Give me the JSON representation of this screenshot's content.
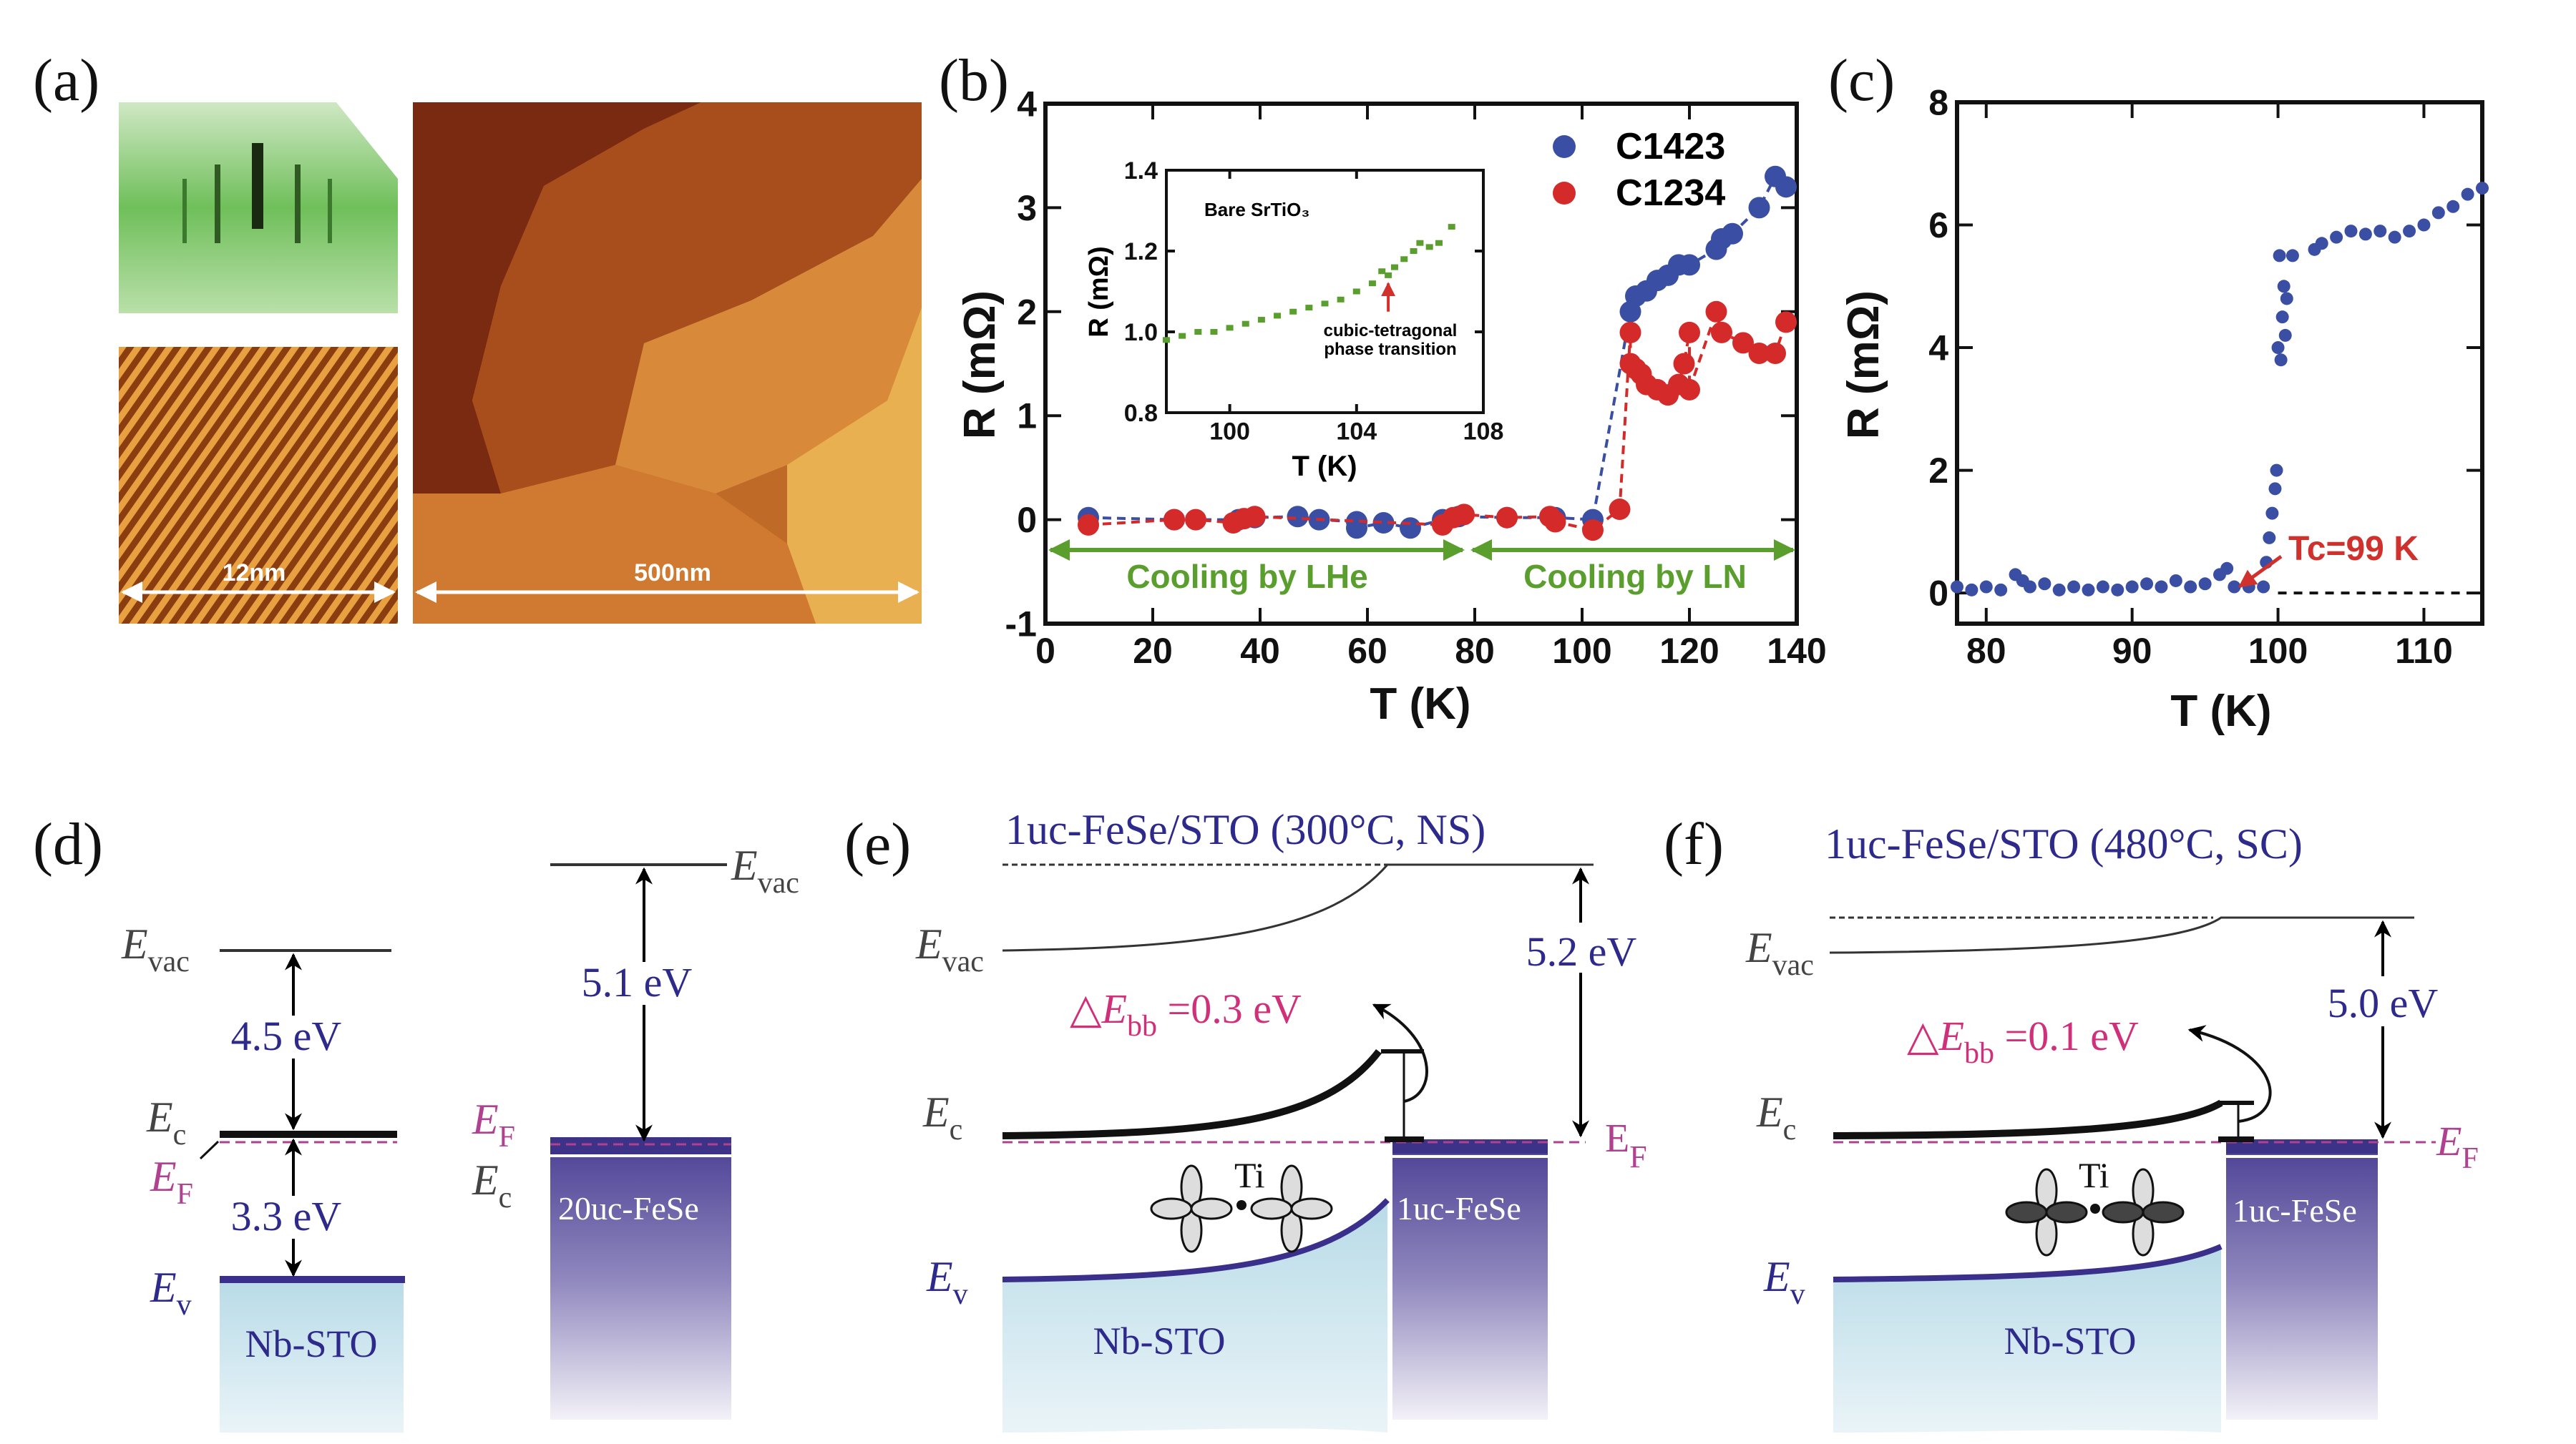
{
  "panels": {
    "a": {
      "label": "(a)",
      "scale_small": "12nm",
      "scale_large": "500nm"
    },
    "b": {
      "label": "(b)"
    },
    "c": {
      "label": "(c)"
    },
    "d": {
      "label": "(d)",
      "left": {
        "evac": {
          "main": "E",
          "sub": "vac"
        },
        "ec": {
          "main": "E",
          "sub": "c"
        },
        "ef": {
          "main": "E",
          "sub": "F"
        },
        "ev": {
          "main": "E",
          "sub": "v"
        },
        "gap_top": "4.5 eV",
        "gap_bottom": "3.3 eV",
        "material": "Nb-STO"
      },
      "right": {
        "evac": {
          "main": "E",
          "sub": "vac"
        },
        "ef": {
          "main": "E",
          "sub": "F"
        },
        "ec": {
          "main": "E",
          "sub": "c"
        },
        "work_function": "5.1 eV",
        "material": "20uc-FeSe"
      }
    },
    "e": {
      "label": "(e)",
      "title": "1uc-FeSe/STO (300°C, NS)",
      "evac": {
        "main": "E",
        "sub": "vac"
      },
      "ec": {
        "main": "E",
        "sub": "c"
      },
      "ev": {
        "main": "E",
        "sub": "v"
      },
      "ef": {
        "main": "E",
        "sub": "F"
      },
      "band_bending": {
        "prefix": "△",
        "main": "E",
        "sub": "bb",
        "value": " =0.3 eV"
      },
      "work_function": "5.2 eV",
      "ti": "Ti",
      "substrate": "Nb-STO",
      "film": "1uc-FeSe"
    },
    "f": {
      "label": "(f)",
      "title": "1uc-FeSe/STO (480°C, SC)",
      "evac": {
        "main": "E",
        "sub": "vac"
      },
      "ec": {
        "main": "E",
        "sub": "c"
      },
      "ev": {
        "main": "E",
        "sub": "v"
      },
      "ef": {
        "main": "E",
        "sub": "F"
      },
      "band_bending": {
        "prefix": "△",
        "main": "E",
        "sub": "bb",
        "value": " =0.1 eV"
      },
      "work_function": "5.0 eV",
      "ti": "Ti",
      "substrate": "Nb-STO",
      "film": "1uc-FeSe"
    }
  },
  "colors": {
    "blue": "#3a4fa3",
    "red": "#d42a2a",
    "green": "#5a9e2e",
    "navy": "#2e2a8c",
    "magenta": "#d0307a",
    "sto": "#bfdde9",
    "fese": "#4a3f94"
  },
  "chart_data": [
    {
      "id": "b",
      "type": "scatter",
      "xlabel": "T (K)",
      "ylabel": "R (mΩ)",
      "xlim": [
        0,
        140
      ],
      "ylim": [
        -1,
        4
      ],
      "xticks": [
        0,
        20,
        40,
        60,
        80,
        100,
        120,
        140
      ],
      "yticks": [
        -1,
        0,
        1,
        2,
        3,
        4
      ],
      "legend_position": "top-right",
      "annotations": [
        "Cooling by LHe",
        "Cooling by LN"
      ],
      "series": [
        {
          "name": "C1423",
          "color": "#3a4fa3",
          "x": [
            8,
            24,
            36,
            39,
            47,
            51,
            58,
            58,
            63,
            68,
            74,
            77,
            86,
            95,
            102,
            109,
            110,
            112,
            114,
            116,
            118,
            120,
            125,
            126,
            128,
            133,
            136,
            138
          ],
          "y": [
            0.02,
            0,
            0,
            0.02,
            0.03,
            0,
            -0.02,
            -0.08,
            -0.03,
            -0.08,
            0,
            0.03,
            0.02,
            0.02,
            0,
            2.0,
            2.15,
            2.2,
            2.3,
            2.35,
            2.45,
            2.45,
            2.6,
            2.7,
            2.75,
            3.0,
            3.3,
            3.2
          ]
        },
        {
          "name": "C1234",
          "color": "#d42a2a",
          "x": [
            8,
            24,
            28,
            35,
            37,
            39,
            74,
            76,
            78,
            86,
            94,
            95,
            102,
            107,
            109,
            109,
            110,
            111,
            112,
            114,
            116,
            118,
            119,
            120,
            120,
            125,
            126,
            130,
            133,
            136,
            138
          ],
          "y": [
            -0.05,
            0,
            0,
            -0.03,
            0.01,
            0.03,
            -0.05,
            0.02,
            0.05,
            0.02,
            0.03,
            -0.02,
            -0.1,
            0.1,
            1.8,
            1.5,
            1.45,
            1.4,
            1.3,
            1.25,
            1.2,
            1.3,
            1.5,
            1.8,
            1.25,
            2.0,
            1.8,
            1.7,
            1.6,
            1.6,
            1.9
          ]
        }
      ],
      "inset": {
        "type": "line",
        "xlabel": "T (K)",
        "ylabel": "R (mΩ)",
        "xlim": [
          98,
          108
        ],
        "ylim": [
          0.8,
          1.4
        ],
        "xticks": [
          100,
          104,
          108
        ],
        "yticks": [
          0.8,
          1.0,
          1.2,
          1.4
        ],
        "title": "Bare SrTiO₃",
        "annotation_line1": "cubic-tetragonal",
        "annotation_line2": "phase transition",
        "transition_T": 105,
        "color": "#5a9e2e",
        "x": [
          98,
          98.5,
          99,
          99.5,
          100,
          100.5,
          101,
          101.5,
          102,
          102.5,
          103,
          103.5,
          104,
          104.5,
          104.8,
          105,
          105.2,
          105.5,
          105.8,
          106,
          106.3,
          106.6,
          107
        ],
        "y": [
          0.98,
          0.99,
          1.0,
          1.0,
          1.01,
          1.02,
          1.03,
          1.04,
          1.05,
          1.06,
          1.07,
          1.08,
          1.1,
          1.12,
          1.15,
          1.14,
          1.16,
          1.18,
          1.2,
          1.22,
          1.21,
          1.22,
          1.26
        ]
      }
    },
    {
      "id": "c",
      "type": "scatter",
      "xlabel": "T (K)",
      "ylabel": "R (mΩ)",
      "xlim": [
        78,
        114
      ],
      "ylim": [
        -0.5,
        8
      ],
      "xticks": [
        80,
        90,
        100,
        110
      ],
      "yticks": [
        0,
        2,
        4,
        6,
        8
      ],
      "annotation": "Tc=99 K",
      "tc": 99,
      "color": "#3a4fa3",
      "x": [
        78,
        79,
        80,
        81,
        82,
        82.5,
        83,
        84,
        85,
        86,
        87,
        88,
        89,
        90,
        91,
        92,
        93,
        94,
        95,
        96,
        96.5,
        97,
        98,
        99,
        99.2,
        99.4,
        99.6,
        99.8,
        99.9,
        100,
        100.1,
        100.2,
        100.3,
        100.4,
        100.5,
        100.6,
        101,
        102.5,
        103,
        104,
        105,
        106,
        107,
        108,
        109,
        110,
        111,
        112,
        113,
        114
      ],
      "y": [
        0.1,
        0.05,
        0.1,
        0.05,
        0.3,
        0.2,
        0.1,
        0.15,
        0.05,
        0.1,
        0.05,
        0.1,
        0.05,
        0.1,
        0.15,
        0.1,
        0.2,
        0.1,
        0.15,
        0.3,
        0.4,
        0.1,
        0.1,
        0.1,
        0.5,
        0.9,
        1.3,
        1.7,
        2.0,
        4.0,
        5.5,
        3.8,
        4.5,
        5.0,
        4.2,
        4.8,
        5.5,
        5.6,
        5.7,
        5.8,
        5.9,
        5.85,
        5.9,
        5.8,
        5.9,
        6.0,
        6.2,
        6.3,
        6.5,
        6.6
      ]
    }
  ]
}
